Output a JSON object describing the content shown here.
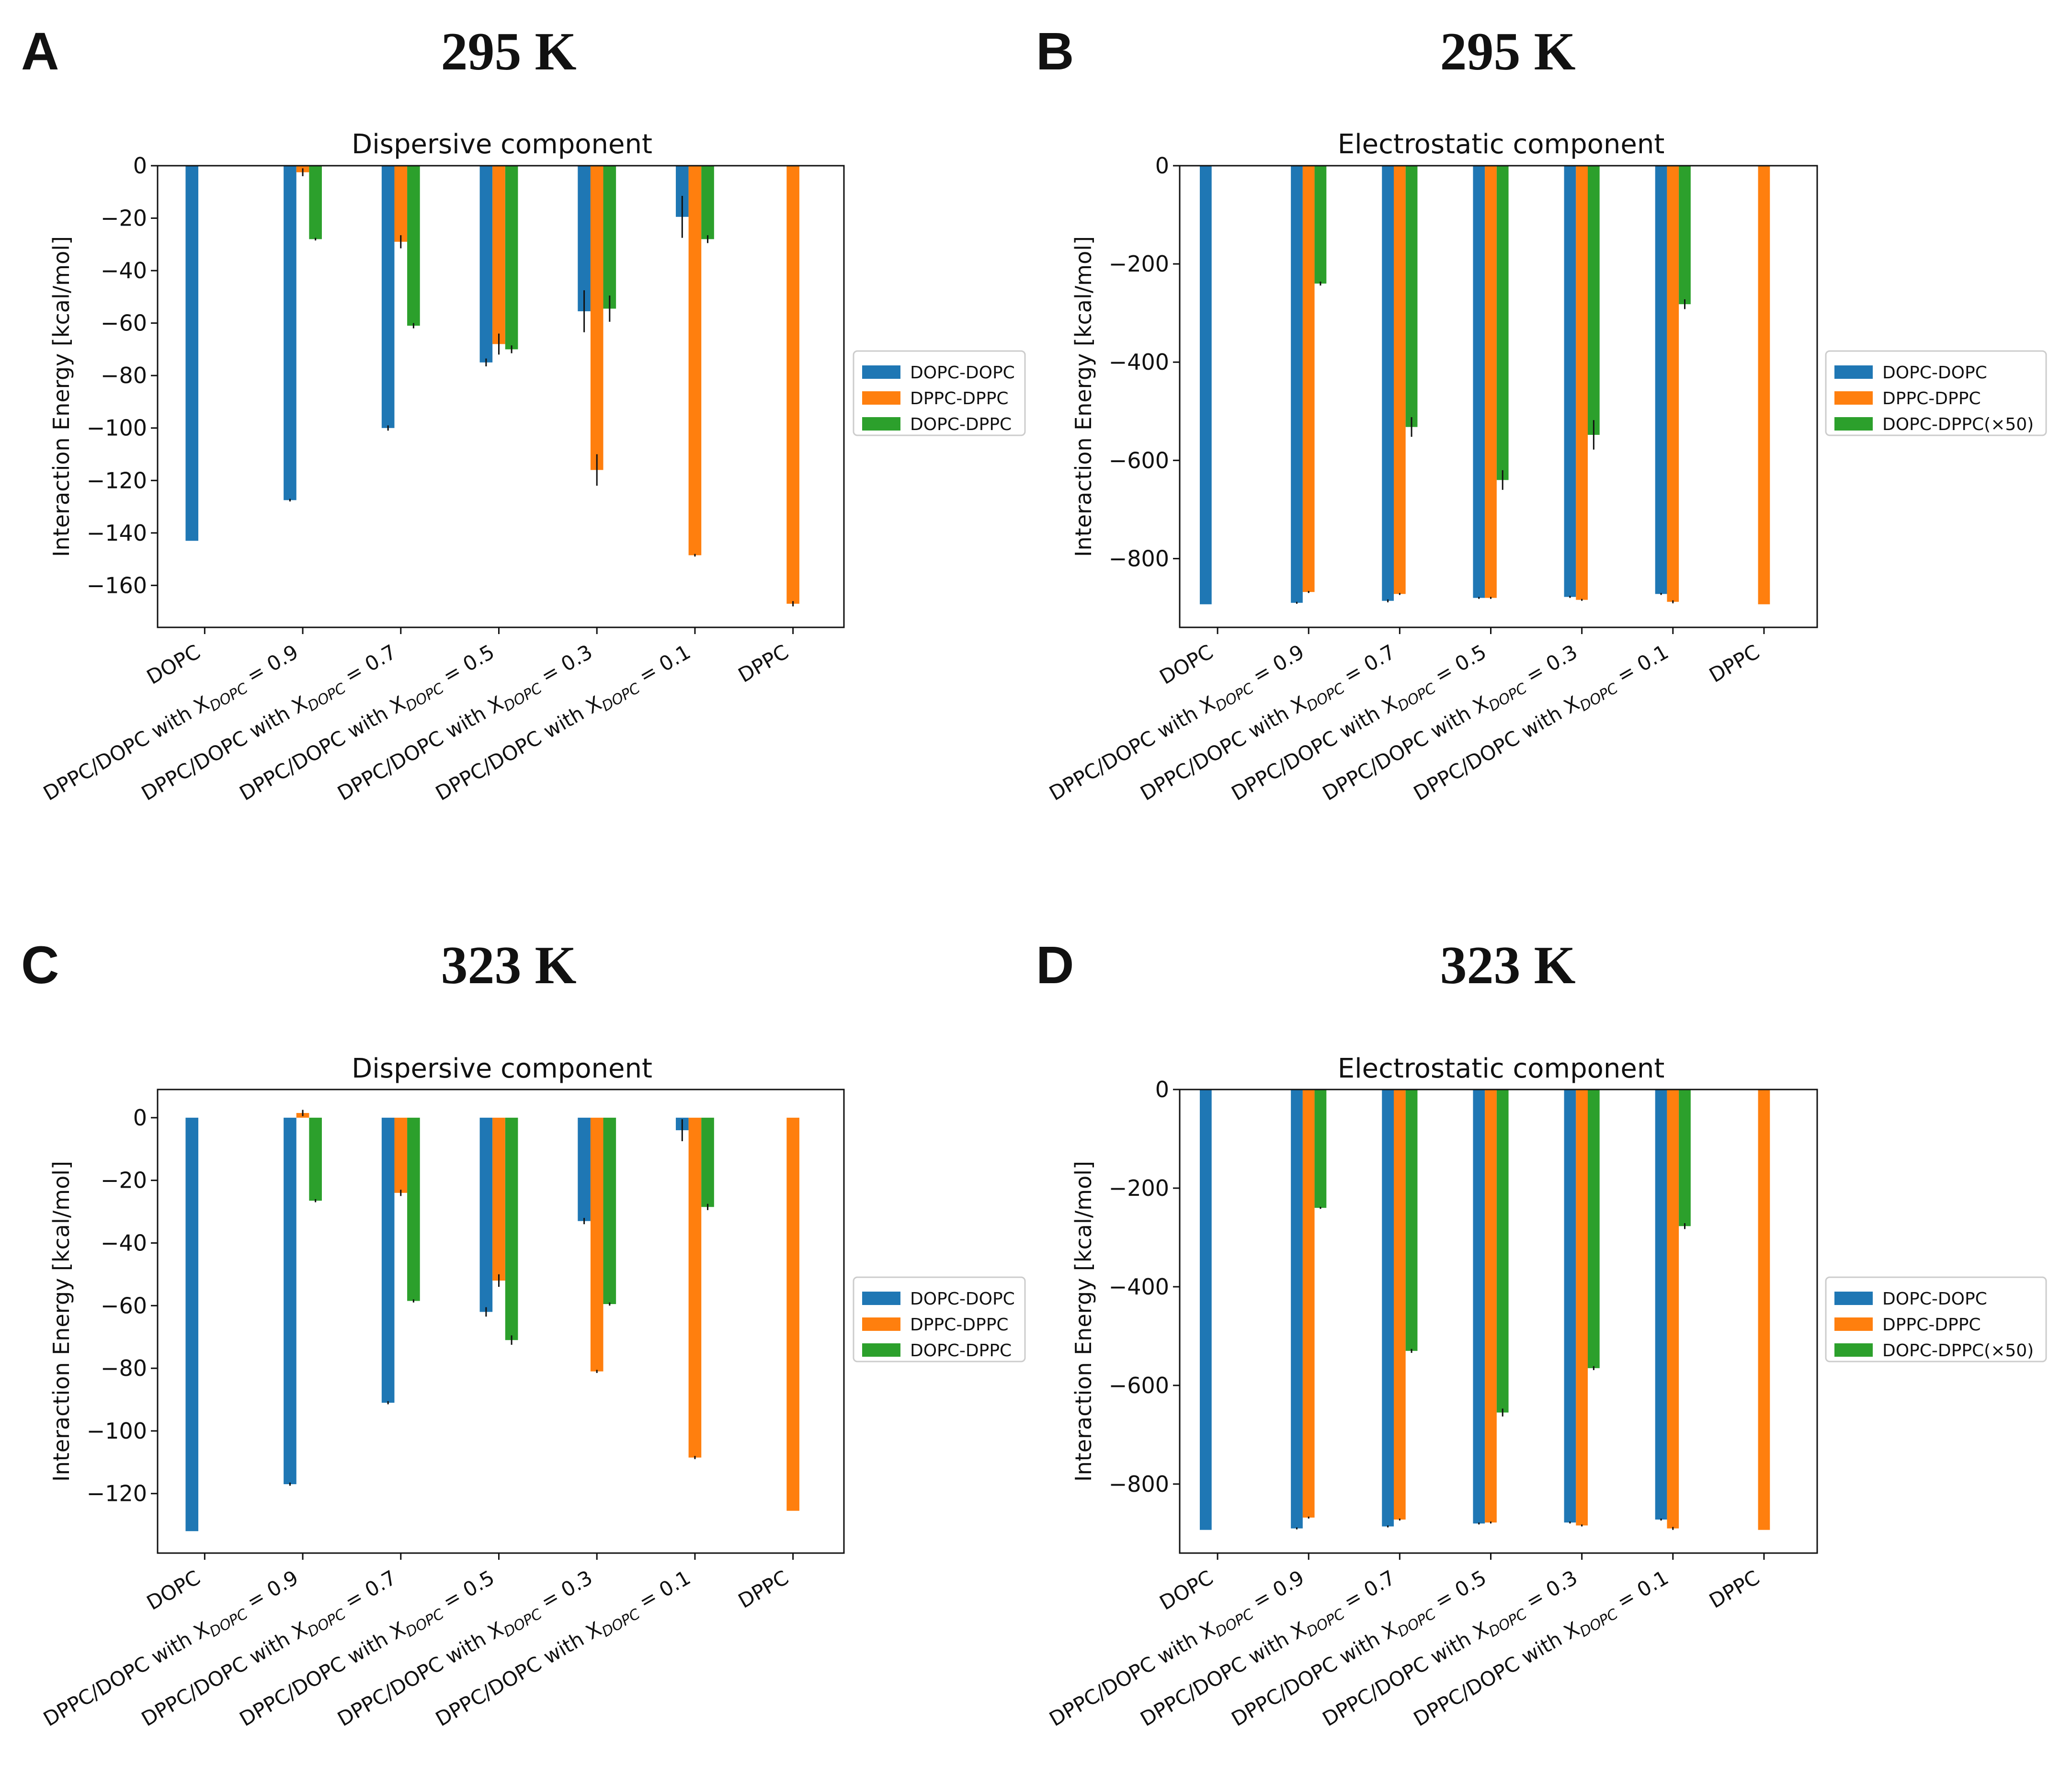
{
  "figure": {
    "panels": [
      {
        "letter": "A",
        "temperature": "295 K"
      },
      {
        "letter": "B",
        "temperature": "295 K"
      },
      {
        "letter": "C",
        "temperature": "323 K"
      },
      {
        "letter": "D",
        "temperature": "323 K"
      }
    ]
  },
  "colors": {
    "DOPC-DOPC": "#1f77b4",
    "DPPC-DPPC": "#ff7f0e",
    "DOPC-DPPC": "#2ca02c"
  },
  "chart_data": [
    {
      "panel": "A",
      "type": "bar",
      "title": "Dispersive component",
      "xlabel": "",
      "ylabel": "Interaction Energy [kcal/mol]",
      "ylim": [
        -176,
        0
      ],
      "yticks": [
        0,
        -20,
        -40,
        -60,
        -80,
        -100,
        -120,
        -140,
        -160
      ],
      "categories": [
        {
          "main": "DOPC",
          "sub": "",
          "eq": ""
        },
        {
          "main": "DPPC/DOPC with X",
          "sub": "DOPC",
          "eq": " = 0.9"
        },
        {
          "main": "DPPC/DOPC with X",
          "sub": "DOPC",
          "eq": " = 0.7"
        },
        {
          "main": "DPPC/DOPC with X",
          "sub": "DOPC",
          "eq": " = 0.5"
        },
        {
          "main": "DPPC/DOPC with X",
          "sub": "DOPC",
          "eq": " = 0.3"
        },
        {
          "main": "DPPC/DOPC with X",
          "sub": "DOPC",
          "eq": " = 0.1"
        },
        {
          "main": "DPPC",
          "sub": "",
          "eq": ""
        }
      ],
      "legend": [
        "DOPC-DOPC",
        "DPPC-DPPC",
        "DOPC-DPPC"
      ],
      "series": [
        {
          "name": "DOPC-DOPC",
          "values": [
            -143,
            -127.5,
            -100,
            -75,
            -55.5,
            -19.5,
            null
          ],
          "errors": [
            0,
            0.5,
            1,
            1.5,
            8,
            8,
            0
          ]
        },
        {
          "name": "DPPC-DPPC",
          "values": [
            null,
            -2.5,
            -29,
            -68,
            -116,
            -148.5,
            -167
          ],
          "errors": [
            0,
            1.5,
            2.5,
            4,
            6,
            0.5,
            1
          ]
        },
        {
          "name": "DOPC-DPPC",
          "values": [
            null,
            -28,
            -61,
            -70,
            -54.5,
            -28,
            null
          ],
          "errors": [
            0,
            0.5,
            1,
            1.5,
            5,
            1.5,
            0
          ]
        }
      ]
    },
    {
      "panel": "B",
      "type": "bar",
      "title": "Electrostatic component",
      "xlabel": "",
      "ylabel": "Interaction Energy [kcal/mol]",
      "ylim": [
        -940,
        0
      ],
      "yticks": [
        0,
        -200,
        -400,
        -600,
        -800
      ],
      "categories": [
        {
          "main": "DOPC",
          "sub": "",
          "eq": ""
        },
        {
          "main": "DPPC/DOPC with X",
          "sub": "DOPC",
          "eq": " = 0.9"
        },
        {
          "main": "DPPC/DOPC with X",
          "sub": "DOPC",
          "eq": " = 0.7"
        },
        {
          "main": "DPPC/DOPC with X",
          "sub": "DOPC",
          "eq": " = 0.5"
        },
        {
          "main": "DPPC/DOPC with X",
          "sub": "DOPC",
          "eq": " = 0.3"
        },
        {
          "main": "DPPC/DOPC with X",
          "sub": "DOPC",
          "eq": " = 0.1"
        },
        {
          "main": "DPPC",
          "sub": "",
          "eq": ""
        }
      ],
      "legend": [
        "DOPC-DOPC",
        "DPPC-DPPC",
        "DOPC-DPPC(×50)"
      ],
      "series": [
        {
          "name": "DOPC-DOPC",
          "values": [
            -893,
            -890,
            -886,
            -880,
            -878,
            -872,
            null
          ],
          "errors": [
            0,
            2,
            3,
            2,
            2,
            2,
            0
          ]
        },
        {
          "name": "DPPC-DPPC",
          "values": [
            null,
            -868,
            -872,
            -880,
            -884,
            -888,
            -893
          ],
          "errors": [
            0,
            2,
            2,
            2,
            2,
            3,
            0
          ]
        },
        {
          "name": "DOPC-DPPC(×50)",
          "values": [
            null,
            -240,
            -532,
            -640,
            -548,
            -282,
            null
          ],
          "errors": [
            0,
            4,
            20,
            20,
            30,
            10,
            0
          ]
        }
      ]
    },
    {
      "panel": "C",
      "type": "bar",
      "title": "Dispersive component",
      "xlabel": "",
      "ylabel": "Interaction Energy [kcal/mol]",
      "ylim": [
        -139,
        9
      ],
      "yticks": [
        0,
        -20,
        -40,
        -60,
        -80,
        -100,
        -120
      ],
      "categories": [
        {
          "main": "DOPC",
          "sub": "",
          "eq": ""
        },
        {
          "main": "DPPC/DOPC with X",
          "sub": "DOPC",
          "eq": " = 0.9"
        },
        {
          "main": "DPPC/DOPC with X",
          "sub": "DOPC",
          "eq": " = 0.7"
        },
        {
          "main": "DPPC/DOPC with X",
          "sub": "DOPC",
          "eq": " = 0.5"
        },
        {
          "main": "DPPC/DOPC with X",
          "sub": "DOPC",
          "eq": " = 0.3"
        },
        {
          "main": "DPPC/DOPC with X",
          "sub": "DOPC",
          "eq": " = 0.1"
        },
        {
          "main": "DPPC",
          "sub": "",
          "eq": ""
        }
      ],
      "legend": [
        "DOPC-DOPC",
        "DPPC-DPPC",
        "DOPC-DPPC"
      ],
      "series": [
        {
          "name": "DOPC-DOPC",
          "values": [
            -132,
            -117,
            -91,
            -62,
            -33,
            -4,
            null
          ],
          "errors": [
            0,
            0.5,
            0.5,
            1.5,
            1,
            3.5,
            0
          ]
        },
        {
          "name": "DPPC-DPPC",
          "values": [
            null,
            1.5,
            -24,
            -52,
            -81,
            -108.5,
            -125.5
          ],
          "errors": [
            0,
            1,
            1,
            2,
            0.5,
            0.5,
            0
          ]
        },
        {
          "name": "DOPC-DPPC",
          "values": [
            null,
            -26.5,
            -58.5,
            -71,
            -59.5,
            -28.5,
            null
          ],
          "errors": [
            0,
            0.5,
            0.5,
            1.5,
            0.5,
            1,
            0
          ]
        }
      ]
    },
    {
      "panel": "D",
      "type": "bar",
      "title": "Electrostatic component",
      "xlabel": "",
      "ylabel": "Interaction Energy [kcal/mol]",
      "ylim": [
        -940,
        0
      ],
      "yticks": [
        0,
        -200,
        -400,
        -600,
        -800
      ],
      "categories": [
        {
          "main": "DOPC",
          "sub": "",
          "eq": ""
        },
        {
          "main": "DPPC/DOPC with X",
          "sub": "DOPC",
          "eq": " = 0.9"
        },
        {
          "main": "DPPC/DOPC with X",
          "sub": "DOPC",
          "eq": " = 0.7"
        },
        {
          "main": "DPPC/DOPC with X",
          "sub": "DOPC",
          "eq": " = 0.5"
        },
        {
          "main": "DPPC/DOPC with X",
          "sub": "DOPC",
          "eq": " = 0.3"
        },
        {
          "main": "DPPC/DOPC with X",
          "sub": "DOPC",
          "eq": " = 0.1"
        },
        {
          "main": "DPPC",
          "sub": "",
          "eq": ""
        }
      ],
      "legend": [
        "DOPC-DOPC",
        "DPPC-DPPC",
        "DOPC-DPPC(×50)"
      ],
      "series": [
        {
          "name": "DOPC-DOPC",
          "values": [
            -893,
            -890,
            -886,
            -880,
            -878,
            -872,
            null
          ],
          "errors": [
            0,
            2,
            2,
            2,
            2,
            2,
            0
          ]
        },
        {
          "name": "DPPC-DPPC",
          "values": [
            null,
            -868,
            -872,
            -878,
            -884,
            -890,
            -893
          ],
          "errors": [
            0,
            2,
            2,
            2,
            2,
            3,
            0
          ]
        },
        {
          "name": "DOPC-DPPC(×50)",
          "values": [
            null,
            -240,
            -530,
            -655,
            -565,
            -277,
            null
          ],
          "errors": [
            0,
            2,
            4,
            8,
            4,
            6,
            0
          ]
        }
      ]
    }
  ]
}
